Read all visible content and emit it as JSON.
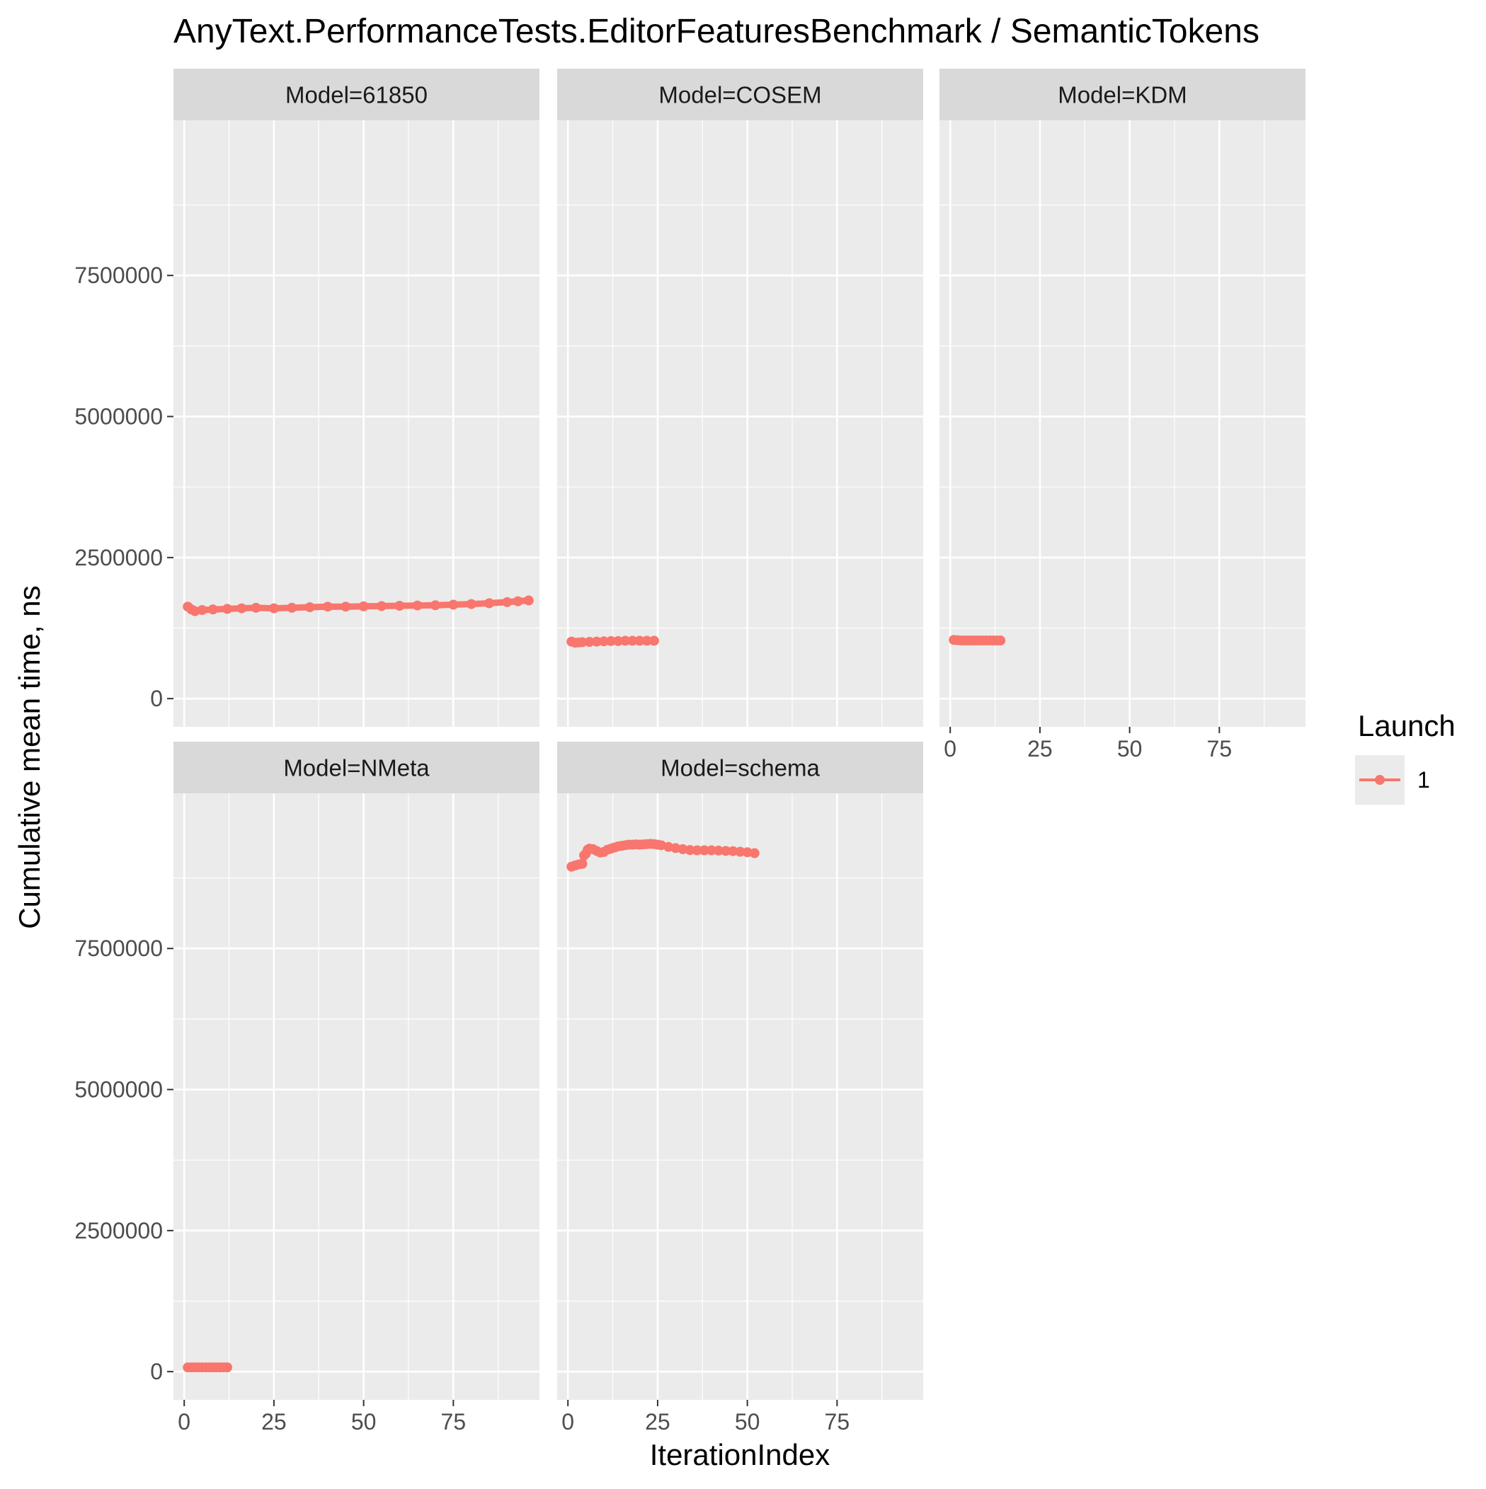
{
  "chart_data": {
    "type": "line",
    "title": "AnyText.PerformanceTests.EditorFeaturesBenchmark / SemanticTokens",
    "xlabel": "IterationIndex",
    "ylabel": "Cumulative mean time, ns",
    "xlim": [
      -3,
      99
    ],
    "ylim": [
      -500000,
      10250000
    ],
    "x_ticks": [
      0,
      25,
      50,
      75
    ],
    "x_tick_labels": [
      "0",
      "25",
      "50",
      "75"
    ],
    "y_ticks": [
      0,
      2500000,
      5000000,
      7500000
    ],
    "y_tick_labels": [
      "0",
      "2500000",
      "5000000",
      "7500000"
    ],
    "grid": true,
    "legend": {
      "title": "Launch",
      "position": "right",
      "entries": [
        {
          "label": "1",
          "color": "#f8766d"
        }
      ]
    },
    "panels": [
      {
        "label": "Model=61850",
        "series": [
          {
            "name": "1",
            "color": "#f8766d",
            "x": [
              1,
              2,
              3,
              5,
              8,
              12,
              16,
              20,
              25,
              30,
              35,
              40,
              45,
              50,
              55,
              60,
              65,
              70,
              75,
              80,
              85,
              90,
              93,
              96
            ],
            "y": [
              1630000,
              1580000,
              1550000,
              1570000,
              1580000,
              1590000,
              1600000,
              1610000,
              1600000,
              1610000,
              1620000,
              1630000,
              1630000,
              1635000,
              1640000,
              1645000,
              1650000,
              1655000,
              1665000,
              1675000,
              1690000,
              1710000,
              1725000,
              1740000
            ]
          }
        ]
      },
      {
        "label": "Model=COSEM",
        "series": [
          {
            "name": "1",
            "color": "#f8766d",
            "x": [
              1,
              2,
              3,
              4,
              6,
              8,
              10,
              12,
              14,
              16,
              18,
              20,
              22,
              24
            ],
            "y": [
              1010000,
              990000,
              995000,
              1000000,
              1005000,
              1010000,
              1015000,
              1020000,
              1020000,
              1025000,
              1025000,
              1025000,
              1025000,
              1025000
            ]
          }
        ]
      },
      {
        "label": "Model=KDM",
        "series": [
          {
            "name": "1",
            "color": "#f8766d",
            "x": [
              1,
              2,
              3,
              4,
              5,
              6,
              7,
              8,
              9,
              10,
              11,
              12,
              13,
              14
            ],
            "y": [
              1040000,
              1035000,
              1030000,
              1030000,
              1030000,
              1030000,
              1030000,
              1030000,
              1030000,
              1030000,
              1030000,
              1030000,
              1030000,
              1030000
            ]
          }
        ]
      },
      {
        "label": "Model=NMeta",
        "series": [
          {
            "name": "1",
            "color": "#f8766d",
            "x": [
              1,
              2,
              3,
              4,
              5,
              6,
              7,
              8,
              9,
              10,
              11,
              12
            ],
            "y": [
              75000,
              75000,
              75000,
              75000,
              75000,
              75000,
              75000,
              75000,
              75000,
              75000,
              75000,
              75000
            ]
          }
        ]
      },
      {
        "label": "Model=schema",
        "series": [
          {
            "name": "1",
            "color": "#f8766d",
            "x": [
              1,
              2,
              3,
              4,
              4.5,
              5,
              5.5,
              6,
              7,
              8,
              9,
              10,
              11,
              12,
              13,
              14,
              15,
              16,
              17,
              18,
              19,
              20,
              21,
              22,
              23,
              24,
              25,
              26,
              28,
              30,
              32,
              34,
              36,
              38,
              40,
              42,
              44,
              46,
              48,
              50,
              52
            ],
            "y": [
              8950000,
              8970000,
              8990000,
              9000000,
              9150000,
              9180000,
              9250000,
              9270000,
              9260000,
              9230000,
              9200000,
              9210000,
              9250000,
              9270000,
              9290000,
              9310000,
              9320000,
              9330000,
              9340000,
              9340000,
              9345000,
              9340000,
              9345000,
              9350000,
              9355000,
              9350000,
              9340000,
              9330000,
              9300000,
              9280000,
              9260000,
              9245000,
              9240000,
              9240000,
              9240000,
              9235000,
              9230000,
              9225000,
              9215000,
              9205000,
              9190000
            ]
          }
        ]
      }
    ]
  }
}
